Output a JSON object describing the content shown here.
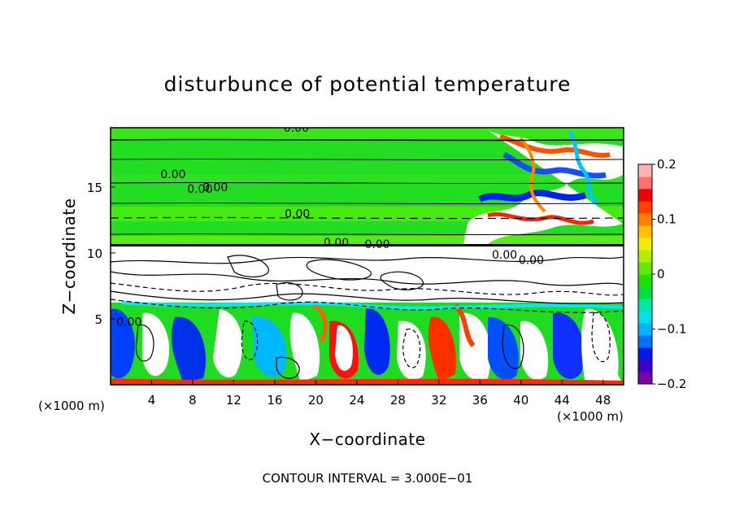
{
  "chart_data": {
    "type": "heatmap",
    "title": "disturbunce of potential temperature",
    "xlabel": "X−coordinate",
    "ylabel": "Z−coordinate",
    "x_unit_left": "(×1000 m)",
    "x_unit_right": "(×1000 m)",
    "xlim": [
      0,
      50
    ],
    "ylim": [
      0,
      19.5
    ],
    "x_ticks": [
      4,
      8,
      12,
      16,
      20,
      24,
      28,
      32,
      36,
      40,
      44,
      48
    ],
    "x_tick_labels": [
      "4",
      "8",
      "12",
      "16",
      "20",
      "24",
      "28",
      "32",
      "36",
      "40",
      "44",
      "48"
    ],
    "y_ticks": [
      5,
      10,
      15
    ],
    "y_tick_labels": [
      "5",
      "10",
      "15"
    ],
    "colorbar": {
      "range": [
        -0.2,
        0.2
      ],
      "ticks": [
        0.2,
        0.1,
        0,
        -0.1,
        -0.2
      ],
      "tick_labels": [
        "0.2",
        "0.1",
        "0",
        "−0.1",
        "−0.2"
      ],
      "colors": [
        "#7b00a8",
        "#3a00c8",
        "#0018e8",
        "#0070ff",
        "#00b4ff",
        "#00e0e8",
        "#00e8a0",
        "#00e040",
        "#20e000",
        "#60e800",
        "#b0ee00",
        "#f0ee00",
        "#ffc000",
        "#ff8000",
        "#ff4000",
        "#ee0000",
        "#ff7070",
        "#ffb4b4"
      ]
    },
    "contour_labels": [
      {
        "text": "0.00",
        "x": 18.1,
        "z": 19.3
      },
      {
        "text": "0.00",
        "x": 6.1,
        "z": 15.8
      },
      {
        "text": "0.00",
        "x": 8.7,
        "z": 14.7
      },
      {
        "text": "0.00",
        "x": 10.2,
        "z": 14.8
      },
      {
        "text": "0.00",
        "x": 18.2,
        "z": 12.8
      },
      {
        "text": "0.00",
        "x": 22.0,
        "z": 10.6
      },
      {
        "text": "0.00",
        "x": 26.0,
        "z": 10.5
      },
      {
        "text": "0.00",
        "x": 38.4,
        "z": 9.7
      },
      {
        "text": "0.00",
        "x": 41.0,
        "z": 9.3
      },
      {
        "text": "0.00",
        "x": 1.8,
        "z": 4.6
      }
    ],
    "grid": false,
    "legend": "colorbar right"
  },
  "footer": "CONTOUR INTERVAL = 3.000E−01"
}
